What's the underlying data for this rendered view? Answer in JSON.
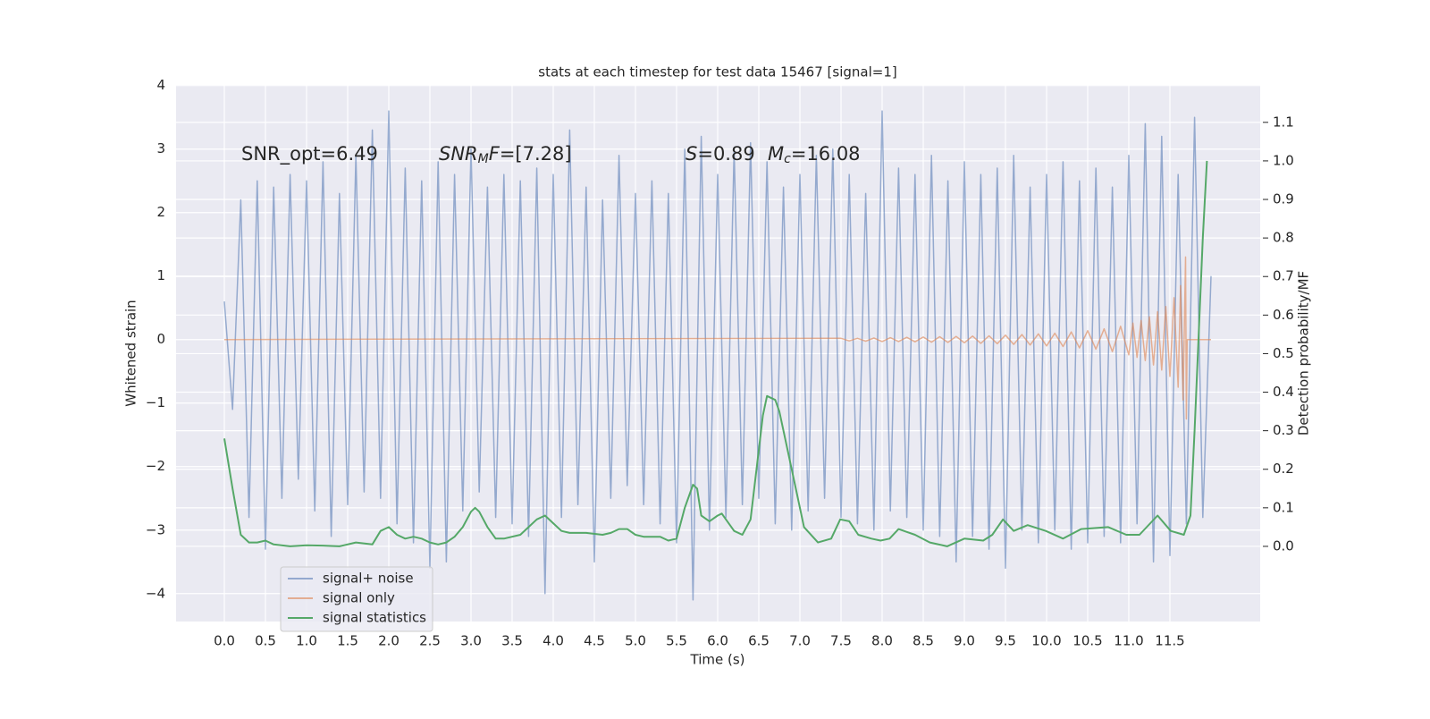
{
  "chart_data": {
    "type": "line",
    "title": "stats at each timestep for test data 15467 [signal=1]",
    "xlabel": "Time (s)",
    "ylabel": "Whitened strain",
    "y2label": "Detection probability/MF",
    "xlim": [
      -0.587,
      12.598
    ],
    "ylim": [
      -4.44,
      4.01
    ],
    "y2lim": [
      -0.195,
      1.197
    ],
    "xticks": [
      {
        "value": 0,
        "label": "0.0"
      },
      0.5,
      {
        "value": 1,
        "label": "1.0"
      },
      1.5,
      {
        "value": 2,
        "label": "2.0"
      },
      2.5,
      {
        "value": 3,
        "label": "3.0"
      },
      3.5,
      {
        "value": 4,
        "label": "4.0"
      },
      4.5,
      {
        "value": 5,
        "label": "5.0"
      },
      5.5,
      {
        "value": 6,
        "label": "6.0"
      },
      6.5,
      {
        "value": 7,
        "label": "7.0"
      },
      7.5,
      {
        "value": 8,
        "label": "8.0"
      },
      8.5,
      {
        "value": 9,
        "label": "9.0"
      },
      9.5,
      {
        "value": 10,
        "label": "10.0"
      },
      10.5,
      {
        "value": 11,
        "label": "11.0"
      },
      11.5
    ],
    "yticks": [
      {
        "value": -4,
        "label": "−4"
      },
      {
        "value": -3,
        "label": "−3"
      },
      {
        "value": -2,
        "label": "−2"
      },
      {
        "value": -1,
        "label": "−1"
      },
      0,
      1,
      2,
      3,
      4
    ],
    "y2ticks": [
      {
        "value": 0,
        "label": "0.0"
      },
      0.1,
      0.2,
      0.3,
      0.4,
      0.5,
      0.6,
      0.7,
      0.8,
      0.9,
      {
        "value": 1,
        "label": "1.0"
      },
      1.1
    ],
    "grid": true,
    "legend": "lower left",
    "background": "#eaeaf2",
    "annotations": [
      [
        {
          "text": "SNR_opt=6.49"
        }
      ],
      [
        {
          "text": "SNR",
          "style": "italic"
        },
        {
          "text": "M",
          "style": "sub"
        },
        {
          "text": "F",
          "style": "italic"
        },
        {
          "text": "=[7.28]"
        }
      ],
      [
        {
          "text": "S",
          "style": "italic"
        },
        {
          "text": "=0.89"
        }
      ],
      [
        {
          "text": "M",
          "style": "italic"
        },
        {
          "text": "c",
          "style": "sub"
        },
        {
          "text": "=16.08"
        }
      ]
    ],
    "series": [
      {
        "name": "signal+ noise",
        "color": "#4c72b0",
        "alpha": 0.55,
        "x": [
          0,
          0.1,
          0.2,
          0.3,
          0.4,
          0.5,
          0.6,
          0.7,
          0.8,
          0.9,
          1,
          1.1,
          1.2,
          1.3,
          1.4,
          1.5,
          1.6,
          1.7,
          1.8,
          1.9,
          2,
          2.1,
          2.2,
          2.3,
          2.4,
          2.5,
          2.6,
          2.7,
          2.8,
          2.9,
          3,
          3.1,
          3.2,
          3.3,
          3.4,
          3.5,
          3.6,
          3.7,
          3.8,
          3.9,
          4,
          4.1,
          4.2,
          4.3,
          4.4,
          4.5,
          4.6,
          4.7,
          4.8,
          4.9,
          5,
          5.1,
          5.2,
          5.3,
          5.4,
          5.5,
          5.6,
          5.7,
          5.8,
          5.9,
          6,
          6.1,
          6.2,
          6.3,
          6.4,
          6.5,
          6.6,
          6.7,
          6.8,
          6.9,
          7,
          7.1,
          7.2,
          7.3,
          7.4,
          7.5,
          7.6,
          7.7,
          7.8,
          7.9,
          8,
          8.1,
          8.2,
          8.3,
          8.4,
          8.5,
          8.6,
          8.7,
          8.8,
          8.9,
          9,
          9.1,
          9.2,
          9.3,
          9.4,
          9.5,
          9.6,
          9.7,
          9.8,
          9.9,
          10,
          10.1,
          10.2,
          10.3,
          10.4,
          10.5,
          10.6,
          10.7,
          10.8,
          10.9,
          11,
          11.1,
          11.2,
          11.3,
          11.4,
          11.5,
          11.6,
          11.7,
          11.8,
          11.9,
          12
        ],
        "values": [
          0.6,
          -1.1,
          2.2,
          -2.8,
          2.5,
          -3.3,
          2.4,
          -2.5,
          2.6,
          -2.2,
          2.5,
          -2.7,
          2.8,
          -3.1,
          2.3,
          -2.6,
          2.9,
          -2.4,
          3.3,
          -2.5,
          3.6,
          -2.9,
          2.7,
          -3.2,
          2.5,
          -3.6,
          2.8,
          -3.5,
          2.6,
          -2.7,
          3.0,
          -2.4,
          2.4,
          -2.8,
          2.6,
          -2.9,
          2.5,
          -3.1,
          2.7,
          -4.0,
          2.6,
          -2.8,
          3.3,
          -2.6,
          2.4,
          -3.5,
          2.2,
          -2.5,
          2.9,
          -2.3,
          2.3,
          -2.6,
          2.5,
          -2.9,
          2.3,
          -3.2,
          3.0,
          -4.1,
          3.2,
          -3.0,
          2.6,
          -2.8,
          3.0,
          -2.6,
          3.1,
          -2.5,
          2.8,
          -2.9,
          2.4,
          -3.0,
          2.6,
          -2.7,
          2.9,
          -2.5,
          3.0,
          -2.8,
          2.6,
          -2.9,
          2.3,
          -3.0,
          3.6,
          -2.7,
          2.7,
          -2.8,
          2.6,
          -3.0,
          2.9,
          -3.1,
          2.5,
          -3.5,
          2.8,
          -3.1,
          2.6,
          -3.3,
          2.7,
          -3.6,
          2.9,
          -3.0,
          2.4,
          -3.2,
          2.6,
          -3.0,
          2.8,
          -3.3,
          2.5,
          -3.2,
          2.7,
          -3.1,
          2.4,
          -3.2,
          2.9,
          -2.9,
          3.4,
          -3.5,
          3.2,
          -3.4,
          2.6,
          -2.9,
          3.5,
          -2.8,
          1.0
        ]
      },
      {
        "name": "signal only",
        "color": "#dd8452",
        "alpha": 0.6,
        "x": [
          0,
          7.5,
          7.6,
          7.7,
          7.8,
          7.9,
          8,
          8.1,
          8.2,
          8.3,
          8.4,
          8.5,
          8.6,
          8.7,
          8.8,
          8.9,
          9,
          9.1,
          9.2,
          9.3,
          9.4,
          9.5,
          9.6,
          9.7,
          9.8,
          9.9,
          10,
          10.1,
          10.2,
          10.3,
          10.4,
          10.5,
          10.6,
          10.7,
          10.8,
          10.9,
          11,
          11.05,
          11.1,
          11.15,
          11.2,
          11.25,
          11.3,
          11.35,
          11.4,
          11.45,
          11.5,
          11.55,
          11.6,
          11.63,
          11.66,
          11.69,
          11.7,
          11.71,
          12
        ],
        "values": [
          0,
          0.02,
          -0.02,
          0.02,
          -0.025,
          0.025,
          -0.03,
          0.03,
          -0.03,
          0.035,
          -0.035,
          0.04,
          -0.04,
          0.045,
          -0.045,
          0.05,
          -0.05,
          0.055,
          -0.06,
          0.06,
          -0.065,
          0.07,
          -0.075,
          0.08,
          -0.085,
          0.09,
          -0.1,
          0.1,
          -0.11,
          0.12,
          -0.13,
          0.14,
          -0.15,
          0.17,
          -0.19,
          0.21,
          -0.24,
          0.26,
          -0.28,
          0.3,
          -0.33,
          0.36,
          -0.4,
          0.44,
          -0.48,
          0.52,
          -0.58,
          0.66,
          -0.75,
          0.85,
          -0.95,
          1.3,
          -1.25,
          0,
          0
        ]
      },
      {
        "name": "signal statistics",
        "color": "#55a868",
        "axis": "y2",
        "x": [
          0,
          0.1,
          0.2,
          0.3,
          0.4,
          0.5,
          0.6,
          0.8,
          1.0,
          1.2,
          1.4,
          1.6,
          1.8,
          1.9,
          2.0,
          2.1,
          2.2,
          2.3,
          2.4,
          2.5,
          2.6,
          2.7,
          2.8,
          2.9,
          3.0,
          3.05,
          3.1,
          3.2,
          3.3,
          3.4,
          3.6,
          3.7,
          3.8,
          3.9,
          4.0,
          4.1,
          4.2,
          4.4,
          4.6,
          4.7,
          4.8,
          4.9,
          5.0,
          5.1,
          5.3,
          5.4,
          5.5,
          5.6,
          5.7,
          5.75,
          5.8,
          5.9,
          6.0,
          6.05,
          6.1,
          6.2,
          6.3,
          6.4,
          6.5,
          6.55,
          6.6,
          6.7,
          6.75,
          6.8,
          6.9,
          7.05,
          7.22,
          7.38,
          7.49,
          7.6,
          7.71,
          7.87,
          7.98,
          8.09,
          8.2,
          8.4,
          8.58,
          8.79,
          9.0,
          9.23,
          9.34,
          9.47,
          9.6,
          9.77,
          9.99,
          10.2,
          10.42,
          10.75,
          10.97,
          11.13,
          11.35,
          11.51,
          11.67,
          11.75,
          11.8,
          11.85,
          11.9,
          11.95
        ],
        "values": [
          0.28,
          0.15,
          0.03,
          0.01,
          0.01,
          0.015,
          0.005,
          0.0,
          0.003,
          0.002,
          0.0,
          0.01,
          0.005,
          0.04,
          0.05,
          0.03,
          0.02,
          0.025,
          0.02,
          0.01,
          0.005,
          0.01,
          0.025,
          0.05,
          0.09,
          0.1,
          0.09,
          0.05,
          0.02,
          0.02,
          0.03,
          0.05,
          0.07,
          0.08,
          0.06,
          0.04,
          0.035,
          0.035,
          0.03,
          0.035,
          0.045,
          0.045,
          0.03,
          0.025,
          0.025,
          0.015,
          0.02,
          0.1,
          0.16,
          0.15,
          0.08,
          0.065,
          0.08,
          0.085,
          0.07,
          0.04,
          0.03,
          0.07,
          0.25,
          0.34,
          0.39,
          0.38,
          0.35,
          0.3,
          0.2,
          0.05,
          0.01,
          0.02,
          0.07,
          0.065,
          0.03,
          0.02,
          0.015,
          0.02,
          0.045,
          0.03,
          0.01,
          0.0,
          0.02,
          0.015,
          0.03,
          0.07,
          0.04,
          0.055,
          0.04,
          0.02,
          0.045,
          0.05,
          0.03,
          0.03,
          0.08,
          0.04,
          0.03,
          0.08,
          0.3,
          0.55,
          0.8,
          1.0
        ]
      }
    ]
  }
}
